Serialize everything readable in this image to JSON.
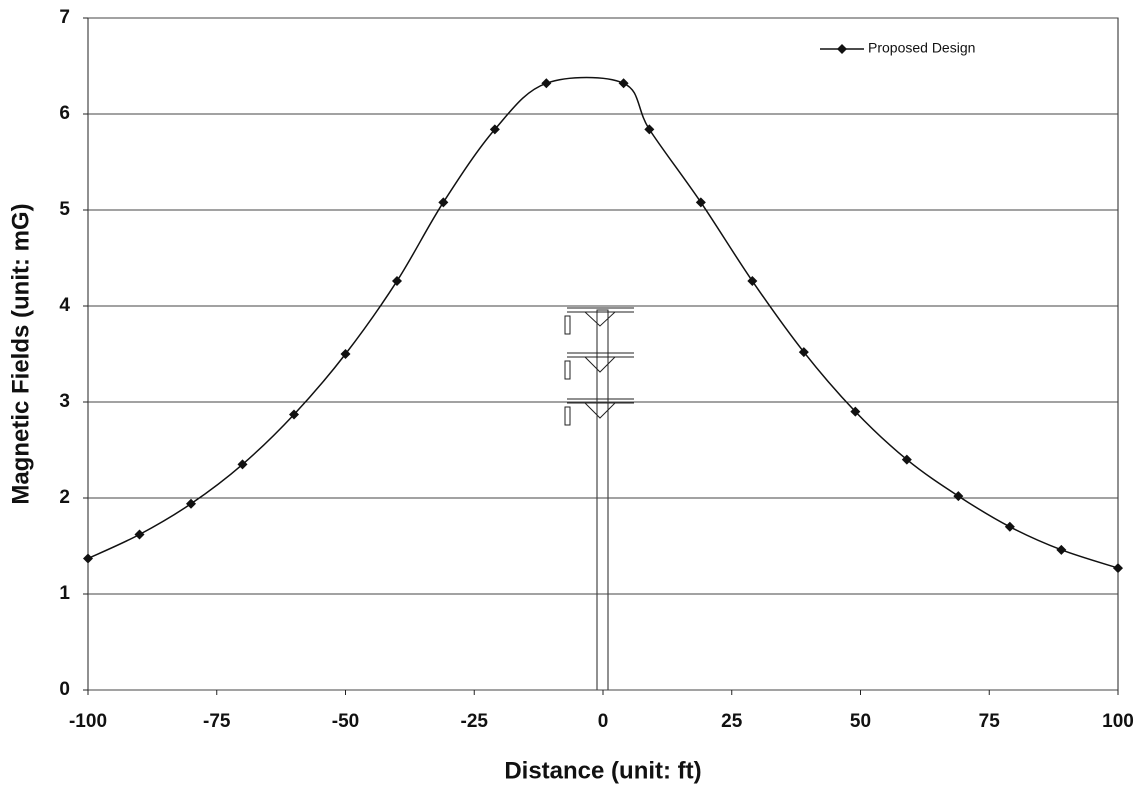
{
  "chart_data": {
    "type": "line",
    "x_label": "Distance (unit: ft)",
    "y_label": "Magnetic Fields (unit: mG)",
    "x": [
      -100,
      -90,
      -80,
      -70,
      -60,
      -50,
      -40,
      -31,
      -21,
      -11,
      4,
      9,
      19,
      29,
      39,
      49,
      59,
      69,
      79,
      89,
      100
    ],
    "series": [
      {
        "name": "Proposed Design",
        "color": "#111111",
        "values": [
          1.37,
          1.62,
          1.94,
          2.35,
          2.87,
          3.5,
          4.26,
          5.08,
          5.84,
          6.32,
          6.32,
          5.84,
          5.08,
          4.26,
          3.52,
          2.9,
          2.4,
          2.02,
          1.7,
          1.46,
          1.27
        ]
      }
    ],
    "xlim": [
      -100,
      100
    ],
    "xticks": [
      -100,
      -75,
      -50,
      -25,
      0,
      25,
      50,
      75,
      100
    ],
    "ylim": [
      0,
      7
    ],
    "yticks": [
      0,
      1,
      2,
      3,
      4,
      5,
      6,
      7
    ],
    "grid": true,
    "legend": "upper right"
  }
}
